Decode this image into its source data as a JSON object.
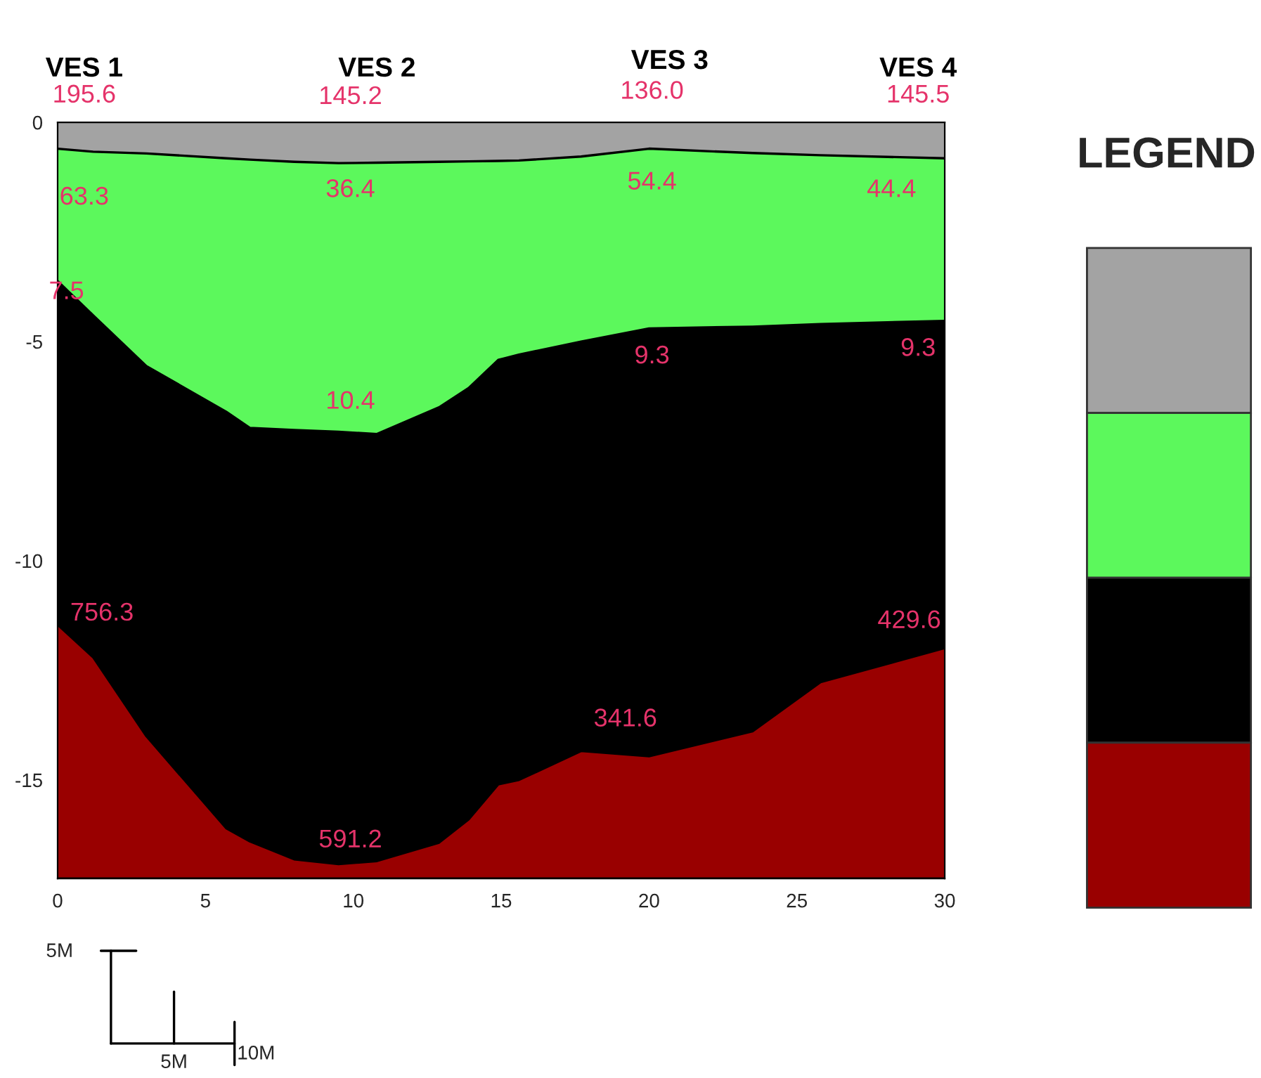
{
  "chart_data": {
    "type": "area",
    "stacked": true,
    "x": [
      0,
      1.2,
      3,
      5.7,
      6.5,
      8,
      9.5,
      10.8,
      12.9,
      13.9,
      14.9,
      15.6,
      17.7,
      20,
      23.5,
      25.8,
      30
    ],
    "series": [
      {
        "color": "#a3a3a3",
        "values": [
          -0.6,
          -0.67,
          -0.71,
          -0.82,
          -0.85,
          -0.9,
          -0.93,
          -0.92,
          -0.9,
          -0.89,
          -0.88,
          -0.87,
          -0.78,
          -0.6,
          -0.7,
          -0.75,
          -0.82
        ]
      },
      {
        "color": "#5cf85c",
        "values": [
          -3.02,
          -3.73,
          -4.85,
          -5.78,
          -6.12,
          -6.12,
          -6.13,
          -6.19,
          -5.6,
          -5.17,
          -4.54,
          -4.43,
          -4.22,
          -4.1,
          -3.96,
          -3.85,
          -3.71
        ]
      },
      {
        "color": "#000000",
        "values": [
          -7.84,
          -7.8,
          -8.44,
          -9.5,
          -9.43,
          -9.79,
          -9.86,
          -9.74,
          -9.93,
          -9.84,
          -9.68,
          -9.7,
          -9.34,
          -9.76,
          -9.23,
          -8.17,
          -7.46
        ]
      },
      {
        "color": "#990000",
        "values": [
          -5.79,
          -5.05,
          -3.25,
          -1.15,
          -0.85,
          -0.44,
          -0.33,
          -0.4,
          -0.82,
          -1.35,
          -2.15,
          -2.25,
          -2.91,
          -2.79,
          -3.36,
          -4.48,
          -5.26
        ]
      }
    ],
    "xlim": [
      0,
      30
    ],
    "xticks": [
      0,
      5,
      10,
      15,
      20,
      25,
      30
    ],
    "ylim": [
      -17.25,
      0
    ],
    "yticks": [
      0,
      -5,
      -10,
      -15
    ],
    "annotations": [
      "VES 1",
      "VES 2",
      "VES 3",
      "VES 4",
      "195.6",
      "145.2",
      "136.0",
      "145.5",
      "63.3",
      "36.4",
      "54.4",
      "44.4",
      "7.5",
      "10.4",
      "9.3",
      "9.3",
      "756.3",
      "591.2",
      "341.6",
      "429.6",
      "5M",
      "5M",
      "10M",
      "LEGEND"
    ]
  }
}
